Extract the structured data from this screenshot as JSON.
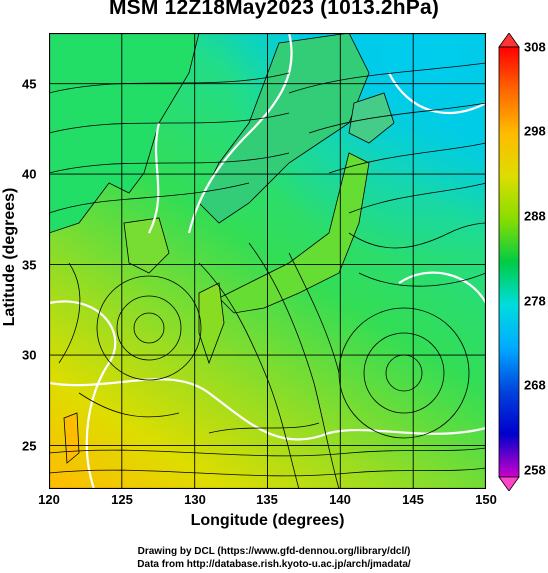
{
  "title": "MSM 12Z18May2023 (1013.2hPa)",
  "x_axis": {
    "label": "Longitude (degrees)",
    "ticks": [
      "120",
      "125",
      "130",
      "135",
      "140",
      "145",
      "150"
    ],
    "range": [
      120,
      150
    ]
  },
  "y_axis": {
    "label": "Latitude  (degrees)",
    "ticks": [
      "25",
      "30",
      "35",
      "40",
      "45"
    ],
    "range": [
      22.4,
      47.6
    ]
  },
  "colorbar": {
    "ticks": [
      "308",
      "298",
      "288",
      "278",
      "268",
      "258"
    ],
    "range": [
      258,
      308
    ],
    "colors": [
      "#cc00cc",
      "#0000cc",
      "#00aaff",
      "#00dddd",
      "#00cc44",
      "#88dd00",
      "#dddd00",
      "#ffbb00",
      "#ff6600",
      "#ff0000"
    ]
  },
  "credits": {
    "line1": "Drawing by DCL (https://www.gfd-dennou.org/library/dcl/)",
    "line2": "Data from http://database.rish.kyoto-u.ac.jp/arch/jmadata/"
  },
  "map_colors": {
    "cold": "#00ccee",
    "cool": "#22dd66",
    "mid": "#88dd22",
    "warm": "#dddd00",
    "hot": "#ffbb00",
    "contour": "#ffffff",
    "coast": "#000000",
    "grid": "#000000"
  }
}
